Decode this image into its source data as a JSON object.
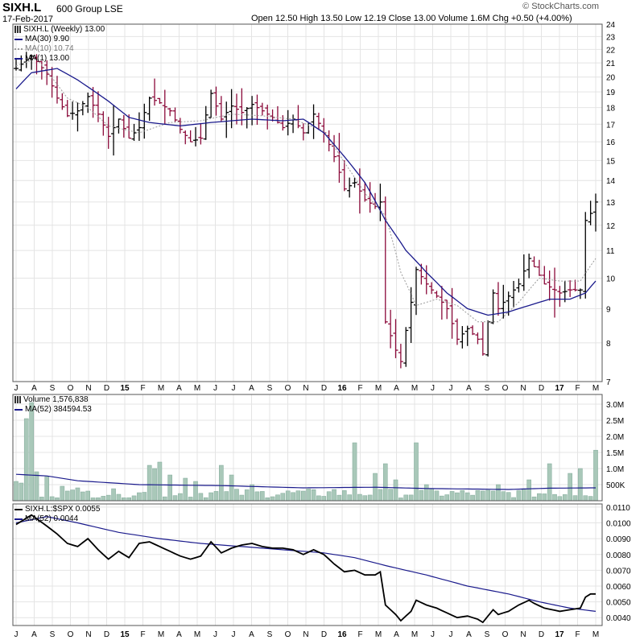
{
  "header": {
    "symbol": "SIXH.L",
    "exchange_name": "600 Group LSE",
    "date": "17-Feb-2017",
    "ohlc": "Open 12.50  High 13.50  Low 12.19  Close 13.00  Volume 1.6M  Chg +0.50 (+4.00%)",
    "watermark": "© StockCharts.com"
  },
  "colors": {
    "ma": "#1a1a8c",
    "down": "#8b0a3a",
    "up": "#000000",
    "volume": "#a9c8b9",
    "volume_edge": "#7fa898",
    "grid": "#e4e4e4",
    "ma10": "#999999"
  },
  "chart_data": [
    {
      "type": "ohlc",
      "title": "SIXH.L (Weekly) 13.00",
      "legend": [
        "MA(30) 9.90",
        "MA(10) 10.74",
        "MA(1) 13.00"
      ],
      "y_scale": "log",
      "ylim": [
        7,
        24
      ],
      "y_ticks": [
        7,
        8,
        9,
        10,
        11,
        12,
        13,
        14,
        15,
        16,
        17,
        18,
        19,
        20,
        21,
        22,
        23,
        24
      ],
      "x_labels": [
        "J",
        "A",
        "S",
        "O",
        "N",
        "D",
        "15",
        "F",
        "M",
        "A",
        "M",
        "J",
        "J",
        "A",
        "S",
        "O",
        "N",
        "D",
        "16",
        "F",
        "M",
        "A",
        "M",
        "J",
        "J",
        "A",
        "S",
        "O",
        "N",
        "D",
        "17",
        "F",
        "M"
      ],
      "close_keys": [
        [
          0,
          20.6
        ],
        [
          3,
          21.5
        ],
        [
          4,
          21.1
        ],
        [
          6,
          20.2
        ],
        [
          8,
          18.6
        ],
        [
          10,
          17.5
        ],
        [
          12,
          17.8
        ],
        [
          14,
          18.7
        ],
        [
          16,
          17.6
        ],
        [
          18,
          16.3
        ],
        [
          20,
          17.3
        ],
        [
          22,
          16.2
        ],
        [
          24,
          16.8
        ],
        [
          26,
          18.6
        ],
        [
          28,
          18.3
        ],
        [
          30,
          17.8
        ],
        [
          32,
          16.7
        ],
        [
          34,
          16.0
        ],
        [
          36,
          16.2
        ],
        [
          38,
          18.9
        ],
        [
          40,
          17.3
        ],
        [
          42,
          18.1
        ],
        [
          44,
          17.7
        ],
        [
          46,
          18.2
        ],
        [
          48,
          17.8
        ],
        [
          50,
          17.4
        ],
        [
          52,
          16.8
        ],
        [
          54,
          17.3
        ],
        [
          56,
          16.5
        ],
        [
          58,
          17.6
        ],
        [
          60,
          16.5
        ],
        [
          62,
          15.2
        ],
        [
          64,
          13.6
        ],
        [
          66,
          13.9
        ],
        [
          68,
          13.1
        ],
        [
          70,
          12.8
        ],
        [
          71,
          13.0
        ],
        [
          72,
          8.6
        ],
        [
          74,
          7.8
        ],
        [
          75,
          7.5
        ],
        [
          77,
          9.2
        ],
        [
          78,
          10.3
        ],
        [
          80,
          9.8
        ],
        [
          82,
          9.4
        ],
        [
          84,
          9.0
        ],
        [
          86,
          8.1
        ],
        [
          88,
          8.4
        ],
        [
          90,
          8.1
        ],
        [
          91,
          7.7
        ],
        [
          93,
          9.5
        ],
        [
          94,
          9.0
        ],
        [
          96,
          9.4
        ],
        [
          98,
          9.8
        ],
        [
          100,
          10.7
        ],
        [
          101,
          10.4
        ],
        [
          103,
          9.8
        ],
        [
          106,
          9.5
        ],
        [
          108,
          9.6
        ],
        [
          110,
          9.6
        ],
        [
          111,
          12.2
        ],
        [
          112,
          12.5
        ],
        [
          113,
          13.0
        ]
      ],
      "ma30_keys": [
        [
          0,
          19.2
        ],
        [
          3,
          20.3
        ],
        [
          8,
          20.6
        ],
        [
          12,
          19.8
        ],
        [
          18,
          18.4
        ],
        [
          22,
          17.4
        ],
        [
          26,
          17.1
        ],
        [
          32,
          16.9
        ],
        [
          38,
          17.1
        ],
        [
          46,
          17.3
        ],
        [
          52,
          17.2
        ],
        [
          56,
          17.3
        ],
        [
          60,
          16.5
        ],
        [
          64,
          15.2
        ],
        [
          68,
          13.9
        ],
        [
          72,
          12.2
        ],
        [
          76,
          11.0
        ],
        [
          80,
          10.2
        ],
        [
          84,
          9.5
        ],
        [
          88,
          9.0
        ],
        [
          92,
          8.8
        ],
        [
          96,
          8.9
        ],
        [
          100,
          9.1
        ],
        [
          104,
          9.3
        ],
        [
          108,
          9.3
        ],
        [
          111,
          9.5
        ],
        [
          113,
          9.9
        ]
      ],
      "ma10_keys": [
        [
          0,
          20.8
        ],
        [
          4,
          21.3
        ],
        [
          10,
          18.6
        ],
        [
          14,
          18.0
        ],
        [
          18,
          16.9
        ],
        [
          24,
          16.5
        ],
        [
          30,
          17.1
        ],
        [
          36,
          17.2
        ],
        [
          42,
          17.6
        ],
        [
          48,
          17.5
        ],
        [
          54,
          17.3
        ],
        [
          60,
          16.6
        ],
        [
          64,
          14.9
        ],
        [
          68,
          13.4
        ],
        [
          72,
          12.4
        ],
        [
          75,
          10.2
        ],
        [
          78,
          9.1
        ],
        [
          82,
          9.3
        ],
        [
          86,
          9.1
        ],
        [
          90,
          8.6
        ],
        [
          94,
          8.6
        ],
        [
          98,
          9.2
        ],
        [
          102,
          10.0
        ],
        [
          106,
          9.9
        ],
        [
          110,
          9.9
        ],
        [
          113,
          10.7
        ]
      ]
    },
    {
      "type": "bar",
      "title": "Volume 1,576,838",
      "legend": [
        "MA(52) 384594.53"
      ],
      "ylim": [
        0,
        3300000
      ],
      "y_tick_labels": [
        "3.0M",
        "2.5M",
        "2.0M",
        "1.5M",
        "1.0M",
        "500K"
      ],
      "y_tick_values": [
        3000000,
        2500000,
        2000000,
        1500000,
        1000000,
        500000
      ],
      "spikes": [
        [
          0,
          600000
        ],
        [
          1,
          550000
        ],
        [
          2,
          2550000
        ],
        [
          3,
          3050000
        ],
        [
          4,
          900000
        ],
        [
          6,
          750000
        ],
        [
          9,
          450000
        ],
        [
          12,
          400000
        ],
        [
          14,
          300000
        ],
        [
          20,
          200000
        ],
        [
          26,
          1100000
        ],
        [
          27,
          1000000
        ],
        [
          28,
          1200000
        ],
        [
          30,
          800000
        ],
        [
          33,
          700000
        ],
        [
          35,
          600000
        ],
        [
          40,
          1100000
        ],
        [
          42,
          800000
        ],
        [
          46,
          500000
        ],
        [
          56,
          300000
        ],
        [
          62,
          350000
        ],
        [
          66,
          1800000
        ],
        [
          70,
          850000
        ],
        [
          72,
          1150000
        ],
        [
          74,
          650000
        ],
        [
          78,
          1800000
        ],
        [
          80,
          500000
        ],
        [
          94,
          500000
        ],
        [
          100,
          650000
        ],
        [
          104,
          1150000
        ],
        [
          108,
          850000
        ],
        [
          110,
          1000000
        ],
        [
          113,
          1570000
        ]
      ],
      "base_volume": 220000,
      "ma_keys": [
        [
          0,
          820000
        ],
        [
          6,
          770000
        ],
        [
          12,
          620000
        ],
        [
          24,
          500000
        ],
        [
          40,
          470000
        ],
        [
          56,
          400000
        ],
        [
          70,
          420000
        ],
        [
          80,
          380000
        ],
        [
          96,
          350000
        ],
        [
          104,
          390000
        ],
        [
          113,
          400000
        ]
      ]
    },
    {
      "type": "line",
      "title": "SIXH.L:$SPX 0.0055",
      "legend": [
        "MA(52) 0.0044"
      ],
      "ylim": [
        0.0035,
        0.0112
      ],
      "y_tick_labels": [
        "0.0110",
        "0.0100",
        "0.0090",
        "0.0080",
        "0.0070",
        "0.0060",
        "0.0050",
        "0.0040"
      ],
      "y_tick_values": [
        0.011,
        0.01,
        0.009,
        0.008,
        0.007,
        0.006,
        0.005,
        0.004
      ],
      "ratio_keys": [
        [
          0,
          0.0099
        ],
        [
          3,
          0.0105
        ],
        [
          6,
          0.0098
        ],
        [
          8,
          0.0093
        ],
        [
          10,
          0.0087
        ],
        [
          12,
          0.0085
        ],
        [
          14,
          0.009
        ],
        [
          16,
          0.0083
        ],
        [
          18,
          0.0077
        ],
        [
          20,
          0.0082
        ],
        [
          22,
          0.0078
        ],
        [
          24,
          0.0087
        ],
        [
          26,
          0.0088
        ],
        [
          28,
          0.0085
        ],
        [
          30,
          0.0082
        ],
        [
          32,
          0.0079
        ],
        [
          34,
          0.0077
        ],
        [
          36,
          0.0079
        ],
        [
          38,
          0.0088
        ],
        [
          40,
          0.0081
        ],
        [
          42,
          0.0084
        ],
        [
          44,
          0.0086
        ],
        [
          46,
          0.0087
        ],
        [
          48,
          0.0085
        ],
        [
          50,
          0.0084
        ],
        [
          52,
          0.0084
        ],
        [
          54,
          0.0083
        ],
        [
          56,
          0.008
        ],
        [
          58,
          0.0083
        ],
        [
          60,
          0.008
        ],
        [
          62,
          0.0074
        ],
        [
          64,
          0.0069
        ],
        [
          66,
          0.007
        ],
        [
          68,
          0.0067
        ],
        [
          70,
          0.0067
        ],
        [
          71,
          0.0069
        ],
        [
          72,
          0.0048
        ],
        [
          74,
          0.0042
        ],
        [
          75,
          0.0038
        ],
        [
          77,
          0.0044
        ],
        [
          78,
          0.0051
        ],
        [
          80,
          0.0048
        ],
        [
          82,
          0.0046
        ],
        [
          84,
          0.0043
        ],
        [
          86,
          0.004
        ],
        [
          88,
          0.0041
        ],
        [
          90,
          0.0039
        ],
        [
          91,
          0.0037
        ],
        [
          93,
          0.0045
        ],
        [
          94,
          0.0042
        ],
        [
          96,
          0.0044
        ],
        [
          98,
          0.0048
        ],
        [
          100,
          0.0051
        ],
        [
          101,
          0.0049
        ],
        [
          103,
          0.0046
        ],
        [
          106,
          0.0044
        ],
        [
          108,
          0.0045
        ],
        [
          110,
          0.0046
        ],
        [
          111,
          0.0053
        ],
        [
          112,
          0.0055
        ],
        [
          113,
          0.0055
        ]
      ],
      "ma_keys": [
        [
          0,
          0.01
        ],
        [
          6,
          0.0104
        ],
        [
          12,
          0.01
        ],
        [
          20,
          0.0094
        ],
        [
          28,
          0.009
        ],
        [
          36,
          0.0087
        ],
        [
          44,
          0.0085
        ],
        [
          52,
          0.0083
        ],
        [
          60,
          0.0081
        ],
        [
          66,
          0.0078
        ],
        [
          72,
          0.0073
        ],
        [
          80,
          0.0067
        ],
        [
          88,
          0.006
        ],
        [
          96,
          0.0055
        ],
        [
          102,
          0.005
        ],
        [
          108,
          0.0046
        ],
        [
          113,
          0.0044
        ]
      ]
    }
  ]
}
